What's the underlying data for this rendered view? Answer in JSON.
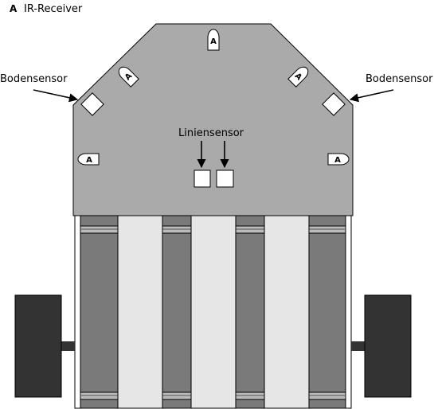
{
  "legend": {
    "marker": "A",
    "text": "IR-Receiver"
  },
  "labels": {
    "floor_sensor_left": "Bodensensor",
    "floor_sensor_right": "Bodensensor",
    "line_sensor": "Liniensensor"
  },
  "ir_receivers": [
    {
      "id": "front",
      "letter": "A"
    },
    {
      "id": "front-left",
      "letter": "A"
    },
    {
      "id": "front-right",
      "letter": "A"
    },
    {
      "id": "left",
      "letter": "A"
    },
    {
      "id": "right",
      "letter": "A"
    }
  ],
  "colors": {
    "plate": "#aaaaaa",
    "chassis_dark": "#7a7a7a",
    "light_band": "#e6e6e6",
    "wheel": "#333333",
    "sensor": "#ffffff",
    "outline": "#000000"
  }
}
